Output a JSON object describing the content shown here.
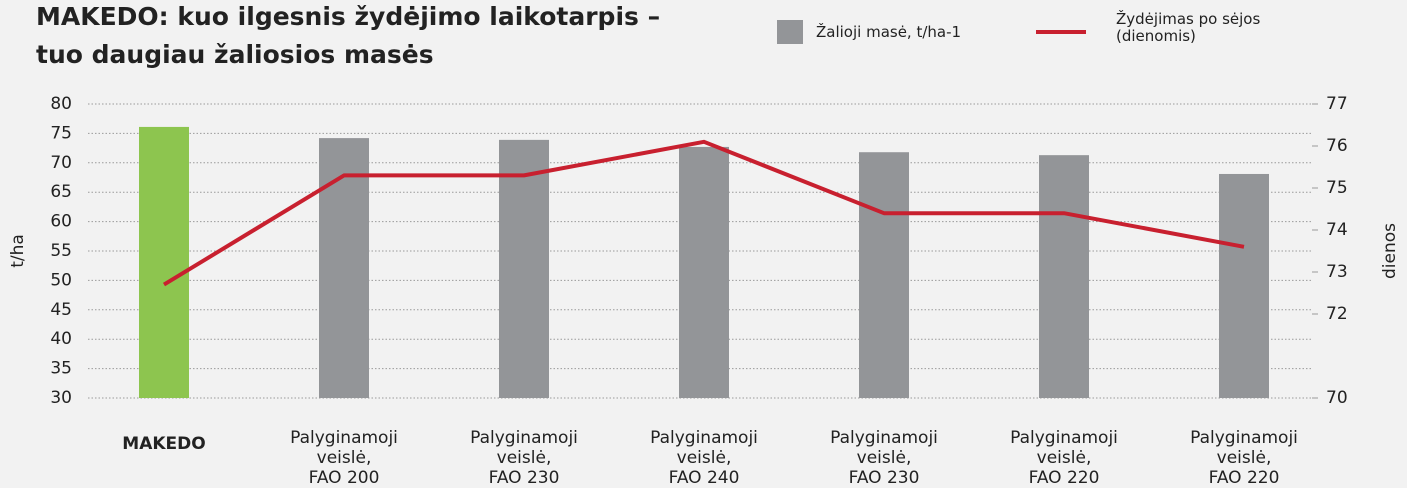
{
  "chart_data": {
    "type": "bar_line",
    "title": [
      "MAKEDO: kuo ilgesnis žydėjimo laikotarpis –",
      "tuo daugiau žaliosios masės"
    ],
    "categories": [
      [
        "MAKEDO"
      ],
      [
        "Palyginamoji",
        "veislė,",
        "FAO 200"
      ],
      [
        "Palyginamoji",
        "veislė,",
        "FAO 230"
      ],
      [
        "Palyginamoji",
        "veislė,",
        "FAO 240"
      ],
      [
        "Palyginamoji",
        "veislė,",
        "FAO 230"
      ],
      [
        "Palyginamoji",
        "veislė,",
        "FAO 220"
      ],
      [
        "Palyginamoji",
        "veislė,",
        "FAO 220"
      ]
    ],
    "series": [
      {
        "name": "Žalioji masė, t/ha-1",
        "type": "bar",
        "color": "#939598",
        "highlight_color": "#8dc54f",
        "values": [
          76.1,
          74.2,
          73.9,
          72.7,
          71.8,
          71.3,
          68.1
        ]
      },
      {
        "name": "Žydėjimas po sėjos (dienomis)",
        "type": "line",
        "axis": "y2",
        "color": "#c8202f",
        "values": [
          72.7,
          75.3,
          75.3,
          76.1,
          74.4,
          74.4,
          73.6
        ]
      }
    ],
    "ylabel": "t/ha",
    "y2label": "dienos",
    "ylim": [
      30,
      80
    ],
    "yticks": [
      30,
      35,
      40,
      45,
      50,
      55,
      60,
      65,
      70,
      75,
      80
    ],
    "y2lim": [
      70,
      77
    ],
    "y2ticks": [
      70,
      72,
      73,
      74,
      75,
      76,
      77
    ],
    "grid": true
  }
}
